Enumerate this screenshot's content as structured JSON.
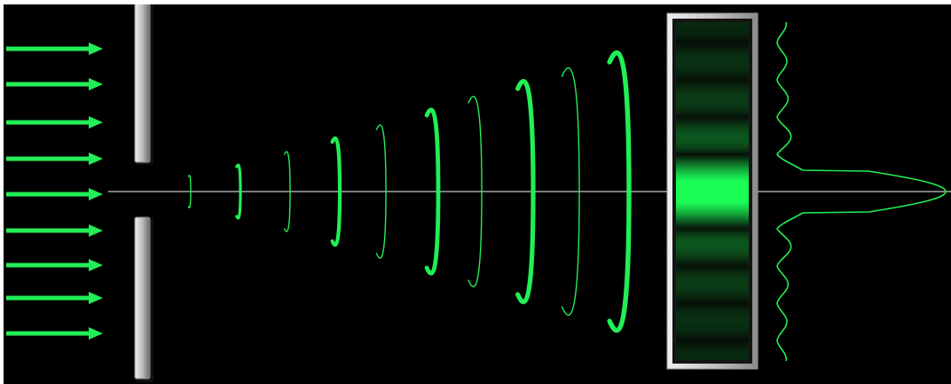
{
  "simulation": {
    "background": "#000000",
    "wave_color": "#22ee55",
    "axis_color": "#c8c8c8",
    "barrier_color": "#b4b4b4",
    "screen_frame_color": "#c6c6c6",
    "screen_fringe_color": "#1aff55",
    "incident_arrow_count": 9,
    "wavefront_count": 10,
    "diffraction_pattern": "single-slit"
  }
}
